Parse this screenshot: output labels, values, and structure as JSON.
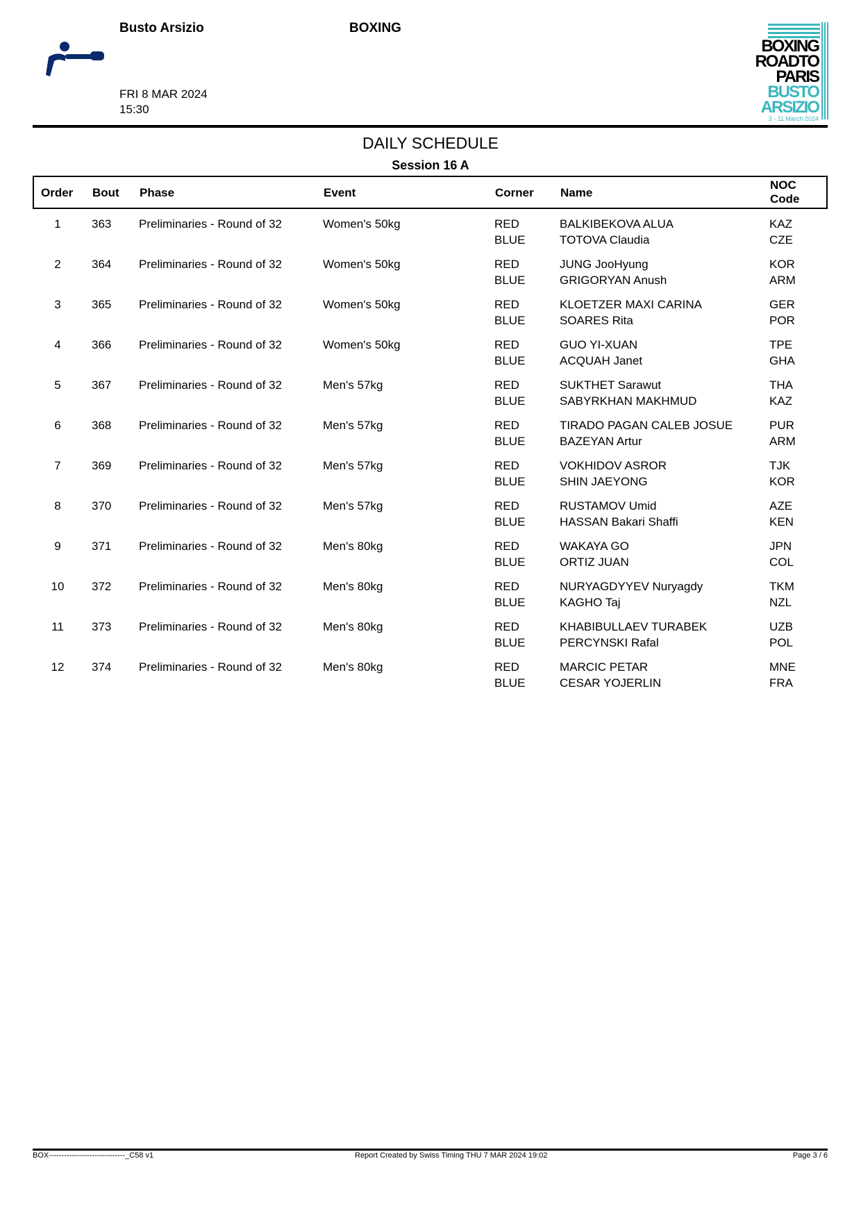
{
  "header": {
    "venue": "Busto Arsizio",
    "sport": "BOXING",
    "date": "FRI 8 MAR 2024",
    "time": "15:30",
    "logo_text": [
      "BOXING",
      "ROADTO",
      "PARIS",
      "BUSTO",
      "ARSIZIO",
      "3 - 11 March 2024"
    ],
    "colors": {
      "brand_blue": "#0a2a6b",
      "teal": "#3bb6bf"
    }
  },
  "title": "DAILY SCHEDULE",
  "session": "Session 16 A",
  "columns": {
    "order": "Order",
    "bout": "Bout",
    "phase": "Phase",
    "event": "Event",
    "corner": "Corner",
    "name": "Name",
    "noc1": "NOC",
    "noc2": "Code"
  },
  "rows": [
    {
      "order": "1",
      "bout": "363",
      "phase": "Preliminaries - Round of 32",
      "event": "Women's 50kg",
      "corner1": "RED",
      "corner2": "BLUE",
      "name1": "BALKIBEKOVA ALUA",
      "name2": "TOTOVA Claudia",
      "noc1": "KAZ",
      "noc2": "CZE"
    },
    {
      "order": "2",
      "bout": "364",
      "phase": "Preliminaries - Round of 32",
      "event": "Women's 50kg",
      "corner1": "RED",
      "corner2": "BLUE",
      "name1": "JUNG JooHyung",
      "name2": "GRIGORYAN Anush",
      "noc1": "KOR",
      "noc2": "ARM"
    },
    {
      "order": "3",
      "bout": "365",
      "phase": "Preliminaries - Round of 32",
      "event": "Women's 50kg",
      "corner1": "RED",
      "corner2": "BLUE",
      "name1": "KLOETZER MAXI CARINA",
      "name2": "SOARES Rita",
      "noc1": "GER",
      "noc2": "POR"
    },
    {
      "order": "4",
      "bout": "366",
      "phase": "Preliminaries - Round of 32",
      "event": "Women's 50kg",
      "corner1": "RED",
      "corner2": "BLUE",
      "name1": "GUO YI-XUAN",
      "name2": "ACQUAH Janet",
      "noc1": "TPE",
      "noc2": "GHA"
    },
    {
      "order": "5",
      "bout": "367",
      "phase": "Preliminaries - Round of 32",
      "event": "Men's 57kg",
      "corner1": "RED",
      "corner2": "BLUE",
      "name1": "SUKTHET Sarawut",
      "name2": "SABYRKHAN MAKHMUD",
      "noc1": "THA",
      "noc2": "KAZ"
    },
    {
      "order": "6",
      "bout": "368",
      "phase": "Preliminaries - Round of 32",
      "event": "Men's 57kg",
      "corner1": "RED",
      "corner2": "BLUE",
      "name1": "TIRADO PAGAN CALEB JOSUE",
      "name2": "BAZEYAN Artur",
      "noc1": "PUR",
      "noc2": "ARM"
    },
    {
      "order": "7",
      "bout": "369",
      "phase": "Preliminaries - Round of 32",
      "event": "Men's 57kg",
      "corner1": "RED",
      "corner2": "BLUE",
      "name1": "VOKHIDOV ASROR",
      "name2": "SHIN JAEYONG",
      "noc1": "TJK",
      "noc2": "KOR"
    },
    {
      "order": "8",
      "bout": "370",
      "phase": "Preliminaries - Round of 32",
      "event": "Men's 57kg",
      "corner1": "RED",
      "corner2": "BLUE",
      "name1": "RUSTAMOV Umid",
      "name2": "HASSAN Bakari Shaffi",
      "noc1": "AZE",
      "noc2": "KEN"
    },
    {
      "order": "9",
      "bout": "371",
      "phase": "Preliminaries - Round of 32",
      "event": "Men's 80kg",
      "corner1": "RED",
      "corner2": "BLUE",
      "name1": "WAKAYA GO",
      "name2": "ORTIZ JUAN",
      "noc1": "JPN",
      "noc2": "COL"
    },
    {
      "order": "10",
      "bout": "372",
      "phase": "Preliminaries - Round of 32",
      "event": "Men's 80kg",
      "corner1": "RED",
      "corner2": "BLUE",
      "name1": "NURYAGDYYEV Nuryagdy",
      "name2": "KAGHO Taj",
      "noc1": "TKM",
      "noc2": "NZL"
    },
    {
      "order": "11",
      "bout": "373",
      "phase": "Preliminaries - Round of 32",
      "event": "Men's 80kg",
      "corner1": "RED",
      "corner2": "BLUE",
      "name1": "KHABIBULLAEV TURABEK",
      "name2": "PERCYNSKI Rafal",
      "noc1": "UZB",
      "noc2": "POL"
    },
    {
      "order": "12",
      "bout": "374",
      "phase": "Preliminaries - Round of 32",
      "event": "Men's 80kg",
      "corner1": "RED",
      "corner2": "BLUE",
      "name1": "MARCIC PETAR",
      "name2": "CESAR YOJERLIN",
      "noc1": "MNE",
      "noc2": "FRA"
    }
  ],
  "footer": {
    "code": "BOX------------------------------_C58 v1",
    "created": "Report Created by Swiss Timing  THU 7 MAR 2024 19:02",
    "page": "Page 3 / 6"
  }
}
